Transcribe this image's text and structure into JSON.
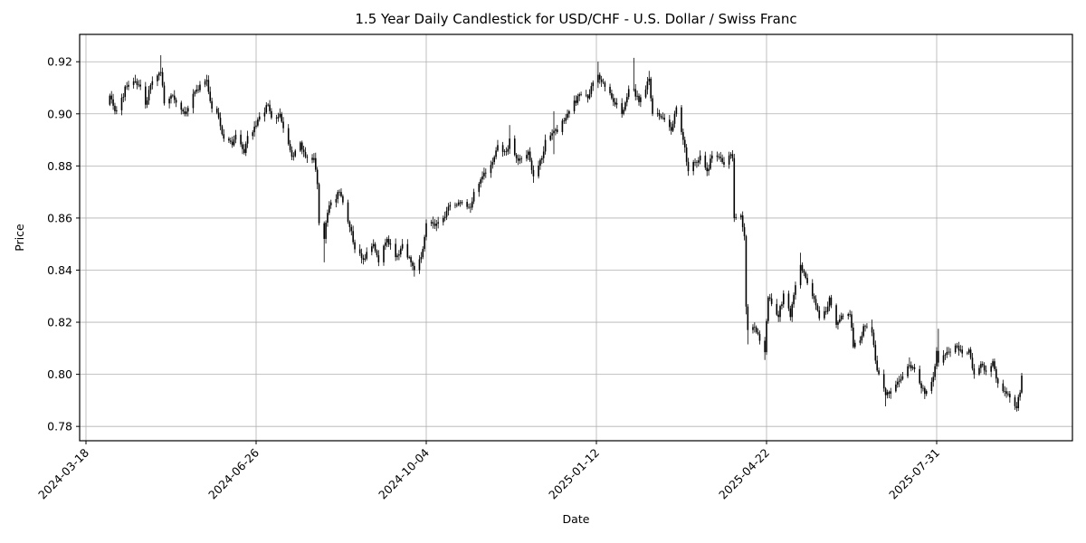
{
  "chart_data": {
    "type": "candlestick",
    "title": "1.5 Year Daily Candlestick for USD/CHF - U.S. Dollar / Swiss Franc",
    "xlabel": "Date",
    "ylabel": "Price",
    "x_ticks": [
      "2024-03-18",
      "2024-06-26",
      "2024-10-04",
      "2025-01-12",
      "2025-04-22",
      "2025-07-31"
    ],
    "y_ticks": [
      0.78,
      0.8,
      0.82,
      0.84,
      0.86,
      0.88,
      0.9,
      0.92
    ],
    "ylim": [
      0.7745,
      0.9305
    ],
    "x_start": "2024-04-01",
    "x_end": "2025-09-19",
    "grid": true,
    "grid_color": "#b0b0b0",
    "candle_color": "#000000",
    "background": "#ffffff",
    "open_start": 0.9035,
    "anchors": [
      [
        "2024-04-01",
        0.907
      ],
      [
        "2024-04-04",
        0.901
      ],
      [
        "2024-04-09",
        0.9065
      ],
      [
        "2024-04-10",
        0.9105
      ],
      [
        "2024-04-16",
        0.9125
      ],
      [
        "2024-04-19",
        0.9105
      ],
      [
        "2024-04-22",
        0.9035
      ],
      [
        "2024-04-26",
        0.9125
      ],
      [
        "2024-05-01",
        0.916
      ],
      [
        "2024-05-03",
        0.904
      ],
      [
        "2024-05-08",
        0.907
      ],
      [
        "2024-05-15",
        0.9
      ],
      [
        "2024-05-21",
        0.9085
      ],
      [
        "2024-05-28",
        0.913
      ],
      [
        "2024-05-31",
        0.902
      ],
      [
        "2024-06-04",
        0.8985
      ],
      [
        "2024-06-07",
        0.8905
      ],
      [
        "2024-06-12",
        0.888
      ],
      [
        "2024-06-14",
        0.892
      ],
      [
        "2024-06-19",
        0.885
      ],
      [
        "2024-06-21",
        0.8915
      ],
      [
        "2024-06-26",
        0.8955
      ],
      [
        "2024-06-28",
        0.899
      ],
      [
        "2024-07-03",
        0.9035
      ],
      [
        "2024-07-05",
        0.8985
      ],
      [
        "2024-07-10",
        0.9
      ],
      [
        "2024-07-12",
        0.8945
      ],
      [
        "2024-07-17",
        0.8835
      ],
      [
        "2024-07-22",
        0.889
      ],
      [
        "2024-07-25",
        0.8835
      ],
      [
        "2024-07-30",
        0.883
      ],
      [
        "2024-08-01",
        0.873
      ],
      [
        "2024-08-02",
        0.858
      ],
      [
        "2024-08-05",
        0.852
      ],
      [
        "2024-08-07",
        0.862
      ],
      [
        "2024-08-09",
        0.866
      ],
      [
        "2024-08-14",
        0.87
      ],
      [
        "2024-08-16",
        0.866
      ],
      [
        "2024-08-21",
        0.855
      ],
      [
        "2024-08-23",
        0.848
      ],
      [
        "2024-08-28",
        0.844
      ],
      [
        "2024-09-03",
        0.85
      ],
      [
        "2024-09-06",
        0.843
      ],
      [
        "2024-09-11",
        0.852
      ],
      [
        "2024-09-16",
        0.845
      ],
      [
        "2024-09-20",
        0.85
      ],
      [
        "2024-09-25",
        0.843
      ],
      [
        "2024-09-27",
        0.84
      ],
      [
        "2024-10-01",
        0.845
      ],
      [
        "2024-10-04",
        0.858
      ],
      [
        "2024-10-09",
        0.857
      ],
      [
        "2024-10-14",
        0.86
      ],
      [
        "2024-10-18",
        0.865
      ],
      [
        "2024-10-23",
        0.866
      ],
      [
        "2024-10-30",
        0.864
      ],
      [
        "2024-11-01",
        0.87
      ],
      [
        "2024-11-06",
        0.876
      ],
      [
        "2024-11-12",
        0.8815
      ],
      [
        "2024-11-15",
        0.888
      ],
      [
        "2024-11-20",
        0.8855
      ],
      [
        "2024-11-22",
        0.8905
      ],
      [
        "2024-11-27",
        0.882
      ],
      [
        "2024-12-03",
        0.8855
      ],
      [
        "2024-12-06",
        0.876
      ],
      [
        "2024-12-11",
        0.883
      ],
      [
        "2024-12-13",
        0.89
      ],
      [
        "2024-12-18",
        0.8935
      ],
      [
        "2024-12-20",
        0.893
      ],
      [
        "2024-12-27",
        0.901
      ],
      [
        "2025-01-02",
        0.9075
      ],
      [
        "2025-01-07",
        0.906
      ],
      [
        "2025-01-10",
        0.912
      ],
      [
        "2025-01-13",
        0.915
      ],
      [
        "2025-01-16",
        0.912
      ],
      [
        "2025-01-21",
        0.906
      ],
      [
        "2025-01-27",
        0.9
      ],
      [
        "2025-01-31",
        0.9095
      ],
      [
        "2025-02-03",
        0.9095
      ],
      [
        "2025-02-06",
        0.9045
      ],
      [
        "2025-02-12",
        0.9135
      ],
      [
        "2025-02-14",
        0.9
      ],
      [
        "2025-02-20",
        0.8985
      ],
      [
        "2025-02-25",
        0.8935
      ],
      [
        "2025-02-28",
        0.9025
      ],
      [
        "2025-03-04",
        0.89
      ],
      [
        "2025-03-07",
        0.878
      ],
      [
        "2025-03-11",
        0.8815
      ],
      [
        "2025-03-14",
        0.884
      ],
      [
        "2025-03-18",
        0.878
      ],
      [
        "2025-03-21",
        0.884
      ],
      [
        "2025-03-26",
        0.883
      ],
      [
        "2025-03-28",
        0.8805
      ],
      [
        "2025-04-01",
        0.8845
      ],
      [
        "2025-04-02",
        0.883
      ],
      [
        "2025-04-03",
        0.86
      ],
      [
        "2025-04-07",
        0.861
      ],
      [
        "2025-04-09",
        0.853
      ],
      [
        "2025-04-10",
        0.826
      ],
      [
        "2025-04-11",
        0.817
      ],
      [
        "2025-04-15",
        0.818
      ],
      [
        "2025-04-17",
        0.8155
      ],
      [
        "2025-04-21",
        0.8085
      ],
      [
        "2025-04-23",
        0.8295
      ],
      [
        "2025-04-25",
        0.827
      ],
      [
        "2025-04-29",
        0.822
      ],
      [
        "2025-05-02",
        0.831
      ],
      [
        "2025-05-06",
        0.822
      ],
      [
        "2025-05-08",
        0.8305
      ],
      [
        "2025-05-12",
        0.842
      ],
      [
        "2025-05-14",
        0.839
      ],
      [
        "2025-05-16",
        0.835
      ],
      [
        "2025-05-21",
        0.8265
      ],
      [
        "2025-05-23",
        0.8215
      ],
      [
        "2025-05-27",
        0.824
      ],
      [
        "2025-05-29",
        0.8295
      ],
      [
        "2025-06-02",
        0.819
      ],
      [
        "2025-06-05",
        0.8225
      ],
      [
        "2025-06-10",
        0.823
      ],
      [
        "2025-06-12",
        0.8105
      ],
      [
        "2025-06-16",
        0.813
      ],
      [
        "2025-06-18",
        0.8185
      ],
      [
        "2025-06-23",
        0.816
      ],
      [
        "2025-06-26",
        0.8015
      ],
      [
        "2025-07-01",
        0.792
      ],
      [
        "2025-07-04",
        0.7935
      ],
      [
        "2025-07-09",
        0.7975
      ],
      [
        "2025-07-15",
        0.8035
      ],
      [
        "2025-07-18",
        0.802
      ],
      [
        "2025-07-24",
        0.7925
      ],
      [
        "2025-07-29",
        0.799
      ],
      [
        "2025-07-31",
        0.809
      ],
      [
        "2025-08-01",
        0.8045
      ],
      [
        "2025-08-05",
        0.8075
      ],
      [
        "2025-08-08",
        0.8085
      ],
      [
        "2025-08-12",
        0.811
      ],
      [
        "2025-08-15",
        0.808
      ],
      [
        "2025-08-19",
        0.8095
      ],
      [
        "2025-08-22",
        0.8
      ],
      [
        "2025-08-26",
        0.804
      ],
      [
        "2025-08-29",
        0.801
      ],
      [
        "2025-09-02",
        0.805
      ],
      [
        "2025-09-05",
        0.7965
      ],
      [
        "2025-09-09",
        0.7935
      ],
      [
        "2025-09-11",
        0.7925
      ],
      [
        "2025-09-16",
        0.787
      ],
      [
        "2025-09-18",
        0.793
      ],
      [
        "2025-09-19",
        0.7995
      ]
    ],
    "wick_overrides": {
      "2024-04-16": {
        "h": 0.915
      },
      "2024-05-01": {
        "h": 0.9225
      },
      "2024-05-28": {
        "h": 0.915
      },
      "2024-07-17": {
        "l": 0.8822
      },
      "2024-08-05": {
        "l": 0.843
      },
      "2024-09-27": {
        "l": 0.8375
      },
      "2024-11-22": {
        "h": 0.8957
      },
      "2024-12-06": {
        "l": 0.8735
      },
      "2024-12-18": {
        "h": 0.901,
        "l": 0.8845
      },
      "2025-01-13": {
        "h": 0.92
      },
      "2025-01-27": {
        "l": 0.8985
      },
      "2025-02-03": {
        "h": 0.9215
      },
      "2025-02-12": {
        "h": 0.9165
      },
      "2025-04-03": {
        "l": 0.8585
      },
      "2025-04-10": {
        "l": 0.823
      },
      "2025-04-11": {
        "l": 0.8115
      },
      "2025-04-21": {
        "l": 0.8055
      },
      "2025-05-12": {
        "h": 0.8467
      },
      "2025-06-23": {
        "h": 0.821
      },
      "2025-07-01": {
        "l": 0.7877
      },
      "2025-07-15": {
        "h": 0.8065
      },
      "2025-08-01": {
        "h": 0.8175
      },
      "2025-09-16": {
        "l": 0.7857
      }
    }
  }
}
